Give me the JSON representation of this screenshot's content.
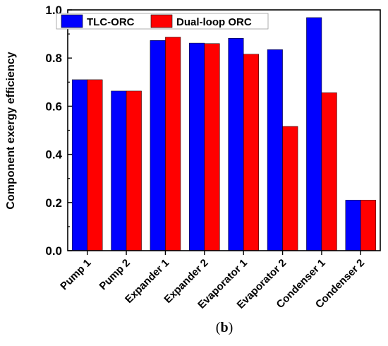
{
  "chart_data": {
    "type": "bar",
    "title": "",
    "xlabel": "",
    "ylabel": "Component exergy efficiency",
    "ylim": [
      0.0,
      1.0
    ],
    "yticks": [
      "0.0",
      "0.2",
      "0.4",
      "0.6",
      "0.8",
      "1.0"
    ],
    "categories": [
      "Pump 1",
      "Pump 2",
      "Expander 1",
      "Expander 2",
      "Evaporator 1",
      "Evaporator 2",
      "Condenser 1",
      "Condenser 2"
    ],
    "series": [
      {
        "name": "TLC-ORC",
        "color": "#0000ff",
        "values": [
          0.71,
          0.663,
          0.873,
          0.862,
          0.882,
          0.835,
          0.968,
          0.21
        ]
      },
      {
        "name": "Dual-loop ORC",
        "color": "#ff0000",
        "values": [
          0.71,
          0.663,
          0.887,
          0.86,
          0.816,
          0.516,
          0.656,
          0.21
        ]
      }
    ],
    "grid": false,
    "legend_position": "top"
  },
  "caption": {
    "open": "(",
    "letter": "b",
    "close": ")"
  }
}
